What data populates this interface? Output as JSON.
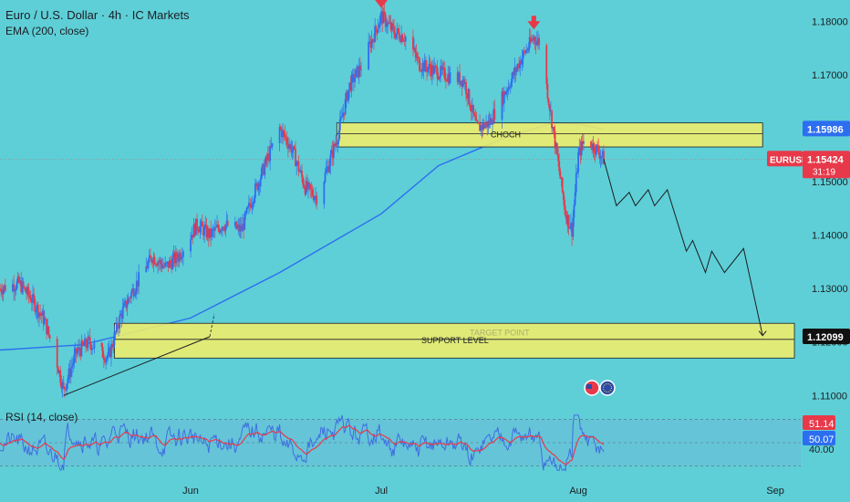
{
  "header": {
    "title": "Euro / U.S. Dollar · 4h · IC Markets",
    "indicator": "EMA (200, close)"
  },
  "colors": {
    "background": "#5ecfd6",
    "bull": "#2d6ef0",
    "bear": "#e8394a",
    "ema": "#2d6ef0",
    "zone_fill": "#f2ee6a",
    "zone_stroke": "#1b1d24",
    "rsi": "#3f6ee0",
    "rsi_ma": "#e8394a"
  },
  "chart_data": [
    {
      "type": "candlestick",
      "symbol": "EURUSD",
      "timeframe": "4h",
      "ylim": [
        1.108,
        1.184
      ],
      "y_ticks": [
        "1.18000",
        "1.17000",
        "1.16000",
        "1.15000",
        "1.14000",
        "1.13000",
        "1.12000",
        "1.11000"
      ],
      "y_tick_values": [
        1.18,
        1.17,
        1.16,
        1.15,
        1.14,
        1.13,
        1.12,
        1.11
      ],
      "x_ticks": [
        "Jun",
        "Jul",
        "Aug",
        "Sep"
      ],
      "x_tick_dates": [
        "2025-06-01",
        "2025-07-01",
        "2025-08-01",
        "2025-09-01"
      ],
      "date_range": [
        "2025-05-02",
        "2025-09-05"
      ],
      "last_date": "2025-08-05",
      "close_path": [
        [
          "2025-05-02",
          1.13
        ],
        [
          "2025-05-05",
          1.131
        ],
        [
          "2025-05-07",
          1.128
        ],
        [
          "2025-05-09",
          1.124
        ],
        [
          "2025-05-11",
          1.116
        ],
        [
          "2025-05-12",
          1.111
        ],
        [
          "2025-05-14",
          1.118
        ],
        [
          "2025-05-16",
          1.12
        ],
        [
          "2025-05-19",
          1.117
        ],
        [
          "2025-05-21",
          1.125
        ],
        [
          "2025-05-23",
          1.13
        ],
        [
          "2025-05-26",
          1.136
        ],
        [
          "2025-05-28",
          1.134
        ],
        [
          "2025-05-30",
          1.136
        ],
        [
          "2025-06-02",
          1.142
        ],
        [
          "2025-06-04",
          1.14
        ],
        [
          "2025-06-06",
          1.142
        ],
        [
          "2025-06-09",
          1.141
        ],
        [
          "2025-06-11",
          1.148
        ],
        [
          "2025-06-13",
          1.154
        ],
        [
          "2025-06-15",
          1.16
        ],
        [
          "2025-06-17",
          1.156
        ],
        [
          "2025-06-19",
          1.149
        ],
        [
          "2025-06-21",
          1.147
        ],
        [
          "2025-06-24",
          1.158
        ],
        [
          "2025-06-26",
          1.168
        ],
        [
          "2025-06-28",
          1.172
        ],
        [
          "2025-06-30",
          1.178
        ],
        [
          "2025-07-01",
          1.181
        ],
        [
          "2025-07-03",
          1.178
        ],
        [
          "2025-07-05",
          1.177
        ],
        [
          "2025-07-07",
          1.172
        ],
        [
          "2025-07-09",
          1.171
        ],
        [
          "2025-07-11",
          1.17
        ],
        [
          "2025-07-14",
          1.169
        ],
        [
          "2025-07-16",
          1.16
        ],
        [
          "2025-07-18",
          1.161
        ],
        [
          "2025-07-21",
          1.168
        ],
        [
          "2025-07-23",
          1.173
        ],
        [
          "2025-07-25",
          1.177
        ],
        [
          "2025-07-26",
          1.176
        ],
        [
          "2025-07-27",
          1.168
        ],
        [
          "2025-07-28",
          1.16
        ],
        [
          "2025-07-29",
          1.152
        ],
        [
          "2025-07-30",
          1.144
        ],
        [
          "2025-07-31",
          1.141
        ],
        [
          "2025-08-01",
          1.155
        ],
        [
          "2025-08-02",
          1.158
        ],
        [
          "2025-08-04",
          1.156
        ],
        [
          "2025-08-05",
          1.1542
        ]
      ],
      "ema_200_path": [
        [
          "2025-05-02",
          1.1185
        ],
        [
          "2025-05-15",
          1.1195
        ],
        [
          "2025-06-01",
          1.1245
        ],
        [
          "2025-06-15",
          1.133
        ],
        [
          "2025-07-01",
          1.144
        ],
        [
          "2025-07-10",
          1.153
        ],
        [
          "2025-07-20",
          1.158
        ],
        [
          "2025-07-28",
          1.161
        ],
        [
          "2025-08-01",
          1.1608
        ],
        [
          "2025-08-05",
          1.1598
        ]
      ],
      "projection_path": [
        [
          "2025-08-05",
          1.1542
        ],
        [
          "2025-08-07",
          1.1455
        ],
        [
          "2025-08-09",
          1.148
        ],
        [
          "2025-08-10",
          1.1455
        ],
        [
          "2025-08-12",
          1.1485
        ],
        [
          "2025-08-13",
          1.1455
        ],
        [
          "2025-08-15",
          1.1485
        ],
        [
          "2025-08-18",
          1.137
        ],
        [
          "2025-08-19",
          1.139
        ],
        [
          "2025-08-21",
          1.133
        ],
        [
          "2025-08-22",
          1.137
        ],
        [
          "2025-08-24",
          1.133
        ],
        [
          "2025-08-27",
          1.1375
        ],
        [
          "2025-08-30",
          1.1212
        ]
      ],
      "trendline_path": [
        [
          "2025-05-12",
          1.11
        ],
        [
          "2025-06-04",
          1.121
        ]
      ],
      "zones": [
        {
          "name": "CHOCH",
          "label": "CHOCH",
          "low": 1.1565,
          "high": 1.161,
          "from": "2025-06-24",
          "to": "2025-08-30",
          "mid_line": 1.159
        },
        {
          "name": "SUPPORT LEVEL",
          "label": "SUPPORT LEVEL",
          "low": 1.117,
          "high": 1.1235,
          "from": "2025-05-20",
          "to": "2025-09-04",
          "mid_line": 1.1205
        },
        {
          "name": "TARGET POINT",
          "label": "TARGET POINT",
          "faded": true
        }
      ],
      "arrows": [
        {
          "date": "2025-07-01",
          "price": 1.183,
          "direction": "down"
        },
        {
          "date": "2025-07-25",
          "price": 1.179,
          "direction": "down"
        }
      ],
      "price_tags": [
        {
          "label": "1.15986",
          "value": 1.15986,
          "color": "#2d6ef0"
        },
        {
          "label": "1.15424",
          "value": 1.15424,
          "color": "#e8394a",
          "symbol": "EURUSD",
          "countdown": "31:19"
        },
        {
          "label": "1.12099",
          "value": 1.12099,
          "color": "#111111"
        }
      ]
    },
    {
      "type": "line",
      "title": "RSI (14, close)",
      "ylim": [
        35,
        65
      ],
      "y_ticks": [
        "40.00"
      ],
      "levels": [
        30,
        50,
        70
      ],
      "series": [
        {
          "name": "RSI",
          "last_value": 50.07
        },
        {
          "name": "RSI MA",
          "last_value": 51.14
        }
      ],
      "values_tags": [
        "51.14",
        "50.07",
        "40.00"
      ]
    }
  ]
}
